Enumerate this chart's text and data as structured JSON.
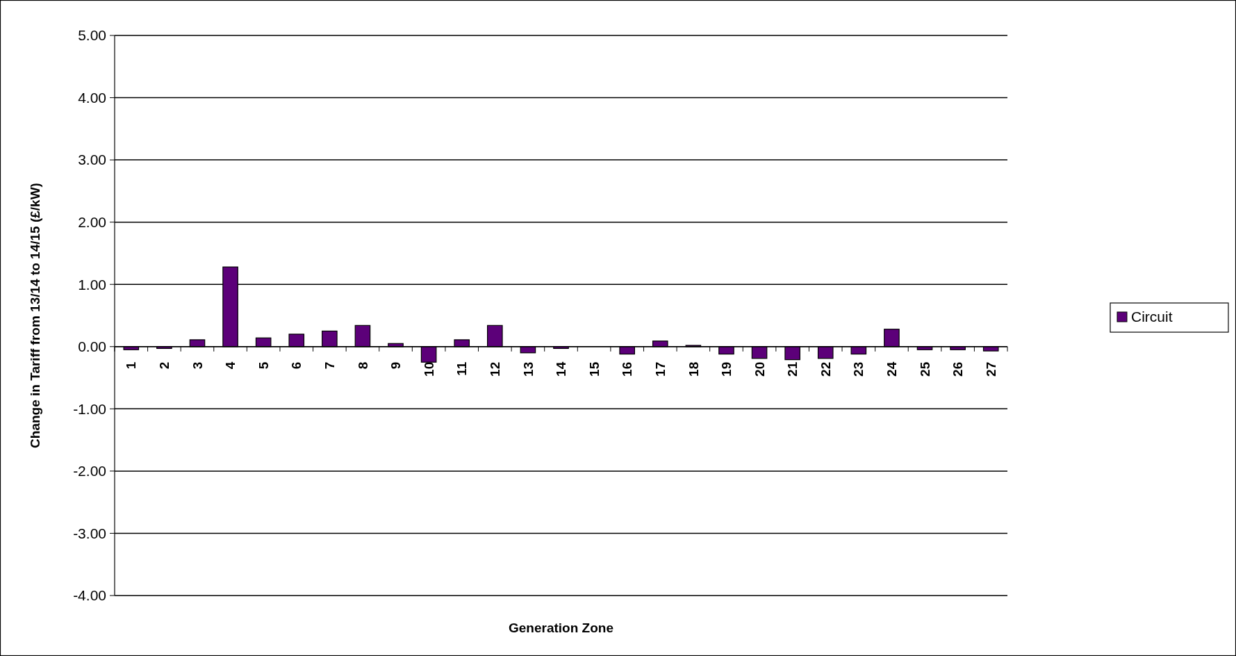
{
  "chart_data": {
    "type": "bar",
    "xlabel": "Generation Zone",
    "ylabel": "Change in Tariff from 13/14 to 14/15 (£/kW)",
    "categories": [
      "1",
      "2",
      "3",
      "4",
      "5",
      "6",
      "7",
      "8",
      "9",
      "10",
      "11",
      "12",
      "13",
      "14",
      "15",
      "16",
      "17",
      "18",
      "19",
      "20",
      "21",
      "22",
      "23",
      "24",
      "25",
      "26",
      "27"
    ],
    "series": [
      {
        "name": "Circuit",
        "color": "#5c0079",
        "values": [
          -0.05,
          -0.03,
          0.11,
          1.28,
          0.14,
          0.2,
          0.25,
          0.34,
          0.05,
          -0.25,
          0.11,
          0.34,
          -0.1,
          -0.03,
          0,
          -0.12,
          0.09,
          0.02,
          -0.12,
          -0.19,
          -0.21,
          -0.19,
          -0.12,
          0.28,
          -0.05,
          -0.05,
          -0.07
        ]
      }
    ],
    "ylim": [
      -4,
      5
    ],
    "yticks": [
      {
        "value": -4,
        "label": "-4.00"
      },
      {
        "value": -3,
        "label": "-3.00"
      },
      {
        "value": -2,
        "label": "-2.00"
      },
      {
        "value": -1,
        "label": "-1.00"
      },
      {
        "value": 0,
        "label": "0.00"
      },
      {
        "value": 1,
        "label": "1.00"
      },
      {
        "value": 2,
        "label": "2.00"
      },
      {
        "value": 3,
        "label": "3.00"
      },
      {
        "value": 4,
        "label": "4.00"
      },
      {
        "value": 5,
        "label": "5.00"
      }
    ],
    "grid": "y",
    "legend": "right"
  }
}
